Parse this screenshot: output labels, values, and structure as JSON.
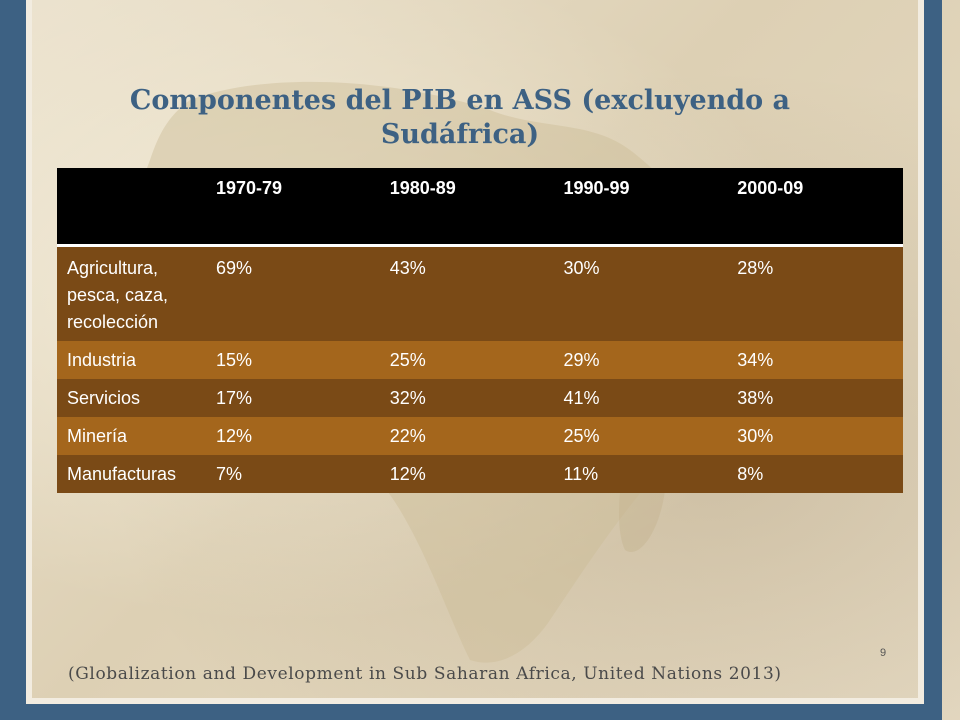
{
  "slide": {
    "title": "Componentes del PIB en ASS (excluyendo a Sudáfrica)",
    "source": "(Globalization and Development in Sub Saharan Africa, United Nations 2013)",
    "page_number": "9"
  },
  "table": {
    "columns": [
      "",
      "1970-79",
      "1980-89",
      "1990-99",
      "2000-09"
    ],
    "rows": [
      {
        "label": "Agricultura, pesca, caza, recolección",
        "values": [
          "69%",
          "43%",
          "30%",
          "28%"
        ]
      },
      {
        "label": "Industria",
        "values": [
          "15%",
          "25%",
          "29%",
          "34%"
        ]
      },
      {
        "label": "Servicios",
        "values": [
          "17%",
          "32%",
          "41%",
          "38%"
        ]
      },
      {
        "label": "Minería",
        "values": [
          "12%",
          "22%",
          "25%",
          "30%"
        ]
      },
      {
        "label": "Manufacturas",
        "values": [
          "7%",
          "12%",
          "11%",
          "8%"
        ]
      }
    ]
  },
  "colors": {
    "frame": "#3d6183",
    "title": "#3d6183",
    "header_bg": "#000000",
    "row_dark": "#7a4a16",
    "row_light": "#a4661c"
  }
}
